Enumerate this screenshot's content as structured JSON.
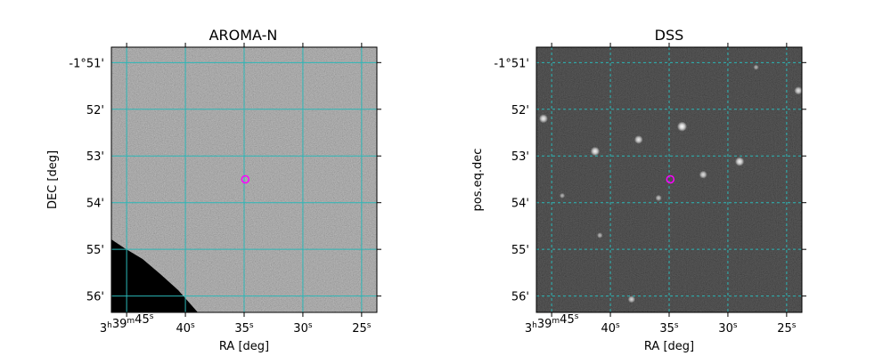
{
  "chart_data": [
    {
      "type": "scatter",
      "title": "AROMA-N",
      "xlabel": "RA [deg]",
      "ylabel": "DEC [deg]",
      "x_ticks": [
        {
          "value": 45,
          "label": "3h39m45s"
        },
        {
          "value": 40,
          "label": "40s"
        },
        {
          "value": 35,
          "label": "35s"
        },
        {
          "value": 30,
          "label": "30s"
        },
        {
          "value": 25,
          "label": "25s"
        }
      ],
      "y_ticks": [
        {
          "value": -51,
          "label": "-1°51'"
        },
        {
          "value": -52,
          "label": "52'"
        },
        {
          "value": -53,
          "label": "53'"
        },
        {
          "value": -54,
          "label": "54'"
        },
        {
          "value": -55,
          "label": "55'"
        },
        {
          "value": -56,
          "label": "56'"
        }
      ],
      "xlim": [
        46.3,
        23.7
      ],
      "ylim": [
        -56.35,
        -50.67
      ],
      "grid": true,
      "grid_color": "#2ab7b7",
      "image_style": "gray-noise",
      "background_color": "#8e8e8e",
      "masked_corner": "bottom-left",
      "marker": {
        "x": 34.9,
        "y": -53.5,
        "color": "#ff00ff",
        "shape": "circle"
      }
    },
    {
      "type": "scatter",
      "title": "DSS",
      "xlabel": "RA [deg]",
      "ylabel": "pos.eq.dec",
      "x_ticks": [
        {
          "value": 45,
          "label": "3h39m45s"
        },
        {
          "value": 40,
          "label": "40s"
        },
        {
          "value": 35,
          "label": "35s"
        },
        {
          "value": 30,
          "label": "30s"
        },
        {
          "value": 25,
          "label": "25s"
        }
      ],
      "y_ticks": [
        {
          "value": -51,
          "label": "-1°51'"
        },
        {
          "value": -52,
          "label": "52'"
        },
        {
          "value": -53,
          "label": "53'"
        },
        {
          "value": -54,
          "label": "54'"
        },
        {
          "value": -55,
          "label": "55'"
        },
        {
          "value": -56,
          "label": "56'"
        }
      ],
      "xlim": [
        46.3,
        23.7
      ],
      "ylim": [
        -56.35,
        -50.67
      ],
      "grid": true,
      "grid_color": "#2ab7b7",
      "image_style": "dark-starfield",
      "background_color": "#141414",
      "stars": [
        {
          "x": 45.7,
          "y": -52.2,
          "brightness": 0.85
        },
        {
          "x": 41.3,
          "y": -52.9,
          "brightness": 0.9
        },
        {
          "x": 37.6,
          "y": -52.65,
          "brightness": 0.8
        },
        {
          "x": 33.9,
          "y": -52.37,
          "brightness": 1.0
        },
        {
          "x": 32.1,
          "y": -53.4,
          "brightness": 0.7
        },
        {
          "x": 29.0,
          "y": -53.12,
          "brightness": 0.9
        },
        {
          "x": 24.0,
          "y": -51.6,
          "brightness": 0.75
        },
        {
          "x": 38.2,
          "y": -56.07,
          "brightness": 0.6
        },
        {
          "x": 35.9,
          "y": -53.9,
          "brightness": 0.45
        },
        {
          "x": 40.9,
          "y": -54.7,
          "brightness": 0.35
        },
        {
          "x": 27.6,
          "y": -51.1,
          "brightness": 0.3
        },
        {
          "x": 44.1,
          "y": -53.85,
          "brightness": 0.3
        }
      ],
      "marker": {
        "x": 34.9,
        "y": -53.5,
        "color": "#ff00ff",
        "shape": "circle"
      }
    }
  ]
}
